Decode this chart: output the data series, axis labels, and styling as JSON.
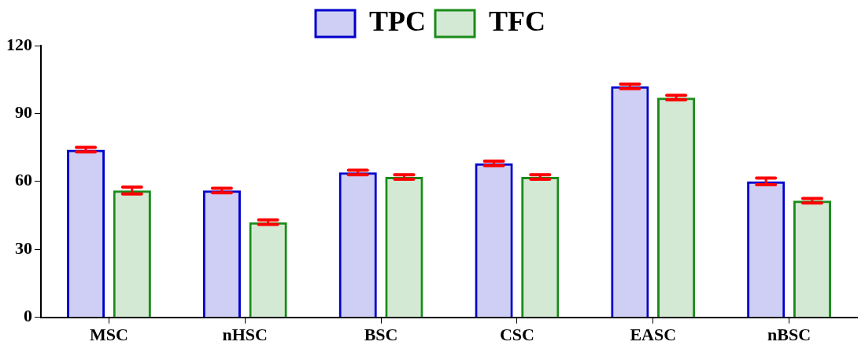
{
  "chart_data": {
    "type": "bar",
    "categories": [
      "MSC",
      "nHSC",
      "BSC",
      "CSC",
      "EASC",
      "nBSC"
    ],
    "series": [
      {
        "name": "TPC",
        "color": "#0000cc",
        "values": [
          74,
          56,
          64,
          68,
          102,
          60
        ],
        "errors": [
          1,
          1,
          1,
          1,
          1,
          1.5
        ]
      },
      {
        "name": "TFC",
        "color": "#1a8c1a",
        "values": [
          56,
          42,
          62,
          62,
          97,
          51.5
        ],
        "errors": [
          1.5,
          1,
          1,
          1,
          1,
          1
        ]
      }
    ],
    "ylim": [
      0,
      120
    ],
    "yticks": [
      0,
      30,
      60,
      90,
      120
    ],
    "grid": false,
    "legend": "top"
  }
}
